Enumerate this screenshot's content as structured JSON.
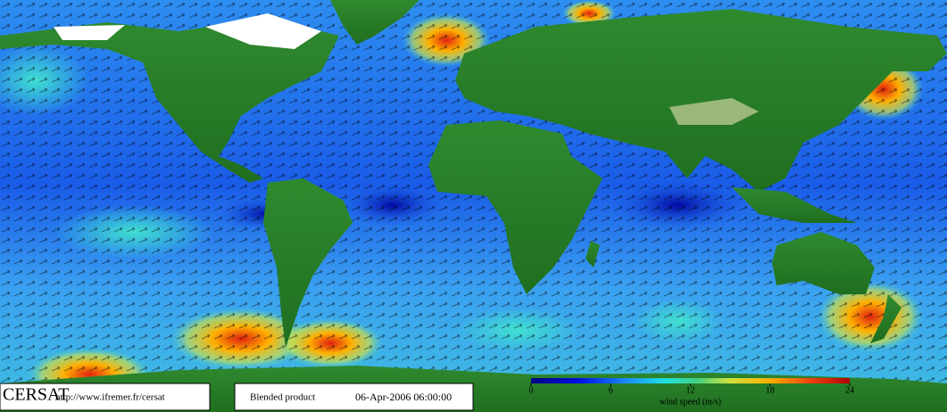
{
  "footer": {
    "logo": "CERSAT",
    "url": "http://www.ifremer.fr/cersat",
    "product": "Blended product",
    "date": "06-Apr-2006 06:00:00"
  },
  "colorbar": {
    "lim": [
      0,
      24
    ],
    "ticks": [
      0,
      6,
      12,
      18,
      24
    ],
    "label": "wind speed (m/s)"
  }
}
